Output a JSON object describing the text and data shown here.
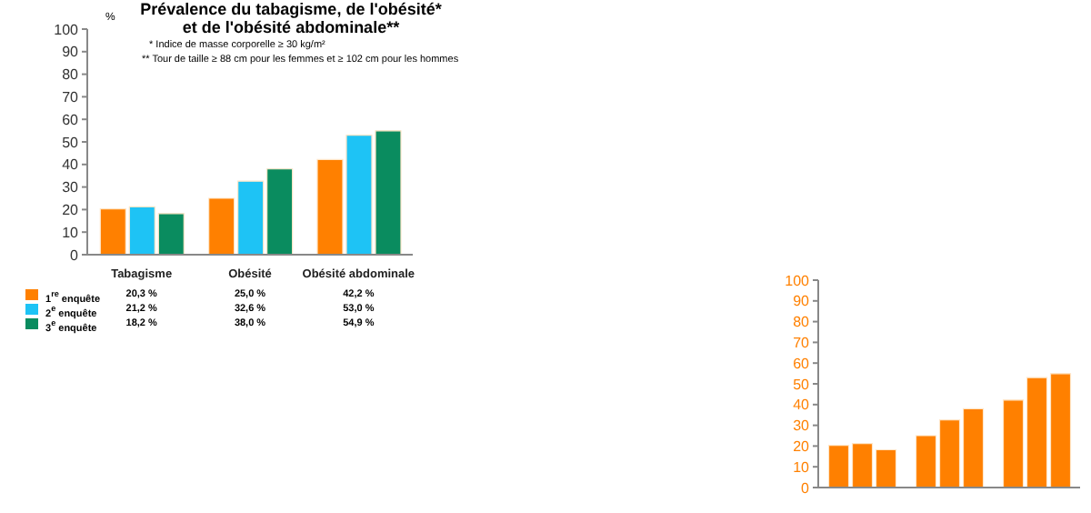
{
  "chart_data": [
    {
      "type": "bar",
      "title": "Prévalence du tabagisme, de l'obésité*\net de l'obésité abdominale**",
      "ylabel": "%",
      "annotations": [
        "* Indice de masse corporelle ≥ 30 kg/m²",
        "** Tour de taille ≥ 88 cm pour les femmes et ≥ 102 cm pour les hommes"
      ],
      "categories": [
        "Tabagisme",
        "Obésité",
        "Obésité abdominale"
      ],
      "ylim": [
        0,
        100
      ],
      "yticks": [
        0,
        10,
        20,
        30,
        40,
        50,
        60,
        70,
        80,
        90,
        100
      ],
      "grid": false,
      "legend": "bottom",
      "series": [
        {
          "name": "1$^{re}$ enquête",
          "color": "#ff8000",
          "values": [
            20.3,
            25.0,
            42.2
          ],
          "value_labels": [
            "20,3 %",
            "25,0 %",
            "42,2 %"
          ]
        },
        {
          "name": "2$^{e}$ enquête",
          "color": "#1ec3f5",
          "values": [
            21.2,
            32.6,
            53.0
          ],
          "value_labels": [
            "21,2 %",
            "32,6 %",
            "53,0 %"
          ]
        },
        {
          "name": "3$^{e}$ enquête",
          "color": "#0a8c5f",
          "values": [
            18.2,
            38.0,
            54.9
          ],
          "value_labels": [
            "18,2 %",
            "38,0 %",
            "54,9 %"
          ]
        }
      ]
    },
    {
      "type": "bar",
      "categories": [
        null,
        null,
        null
      ],
      "ylim": [
        0,
        100
      ],
      "yticks": [
        0,
        10,
        20,
        30,
        40,
        50,
        60,
        70,
        80,
        90,
        100
      ],
      "grid": false,
      "series": [
        {
          "color": "#ff8000",
          "values": [
            20.3,
            25.0,
            42.2
          ]
        },
        {
          "color": "#ff8000",
          "values": [
            21.2,
            32.6,
            53.0
          ]
        },
        {
          "color": "#ff8000",
          "values": [
            18.2,
            38.0,
            54.9
          ]
        }
      ]
    }
  ]
}
